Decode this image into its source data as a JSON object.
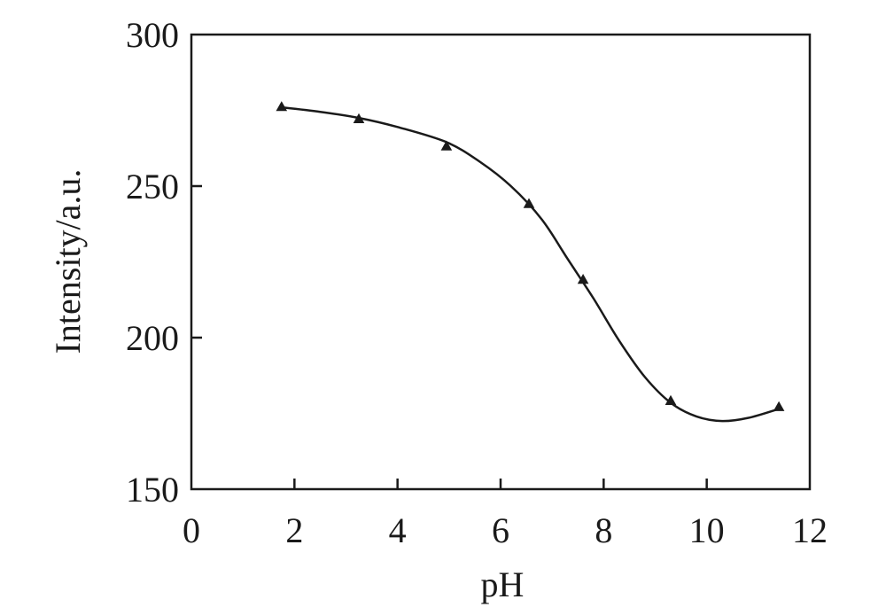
{
  "chart_data": {
    "type": "line",
    "title": "",
    "xlabel": "pH",
    "ylabel": "Intensity/a.u.",
    "xlim": [
      0,
      12
    ],
    "ylim": [
      150,
      300
    ],
    "xticks": [
      "0",
      "2",
      "4",
      "6",
      "8",
      "10",
      "12"
    ],
    "yticks": [
      "150",
      "200",
      "250",
      "300"
    ],
    "grid": false,
    "legend": "none",
    "marker": "triangle",
    "color": "#1a1a1a",
    "series": [
      {
        "points": [
          {
            "x": 1.75,
            "y": 276
          },
          {
            "x": 3.25,
            "y": 272
          },
          {
            "x": 4.95,
            "y": 263
          },
          {
            "x": 6.55,
            "y": 244
          },
          {
            "x": 7.6,
            "y": 219
          },
          {
            "x": 9.3,
            "y": 179
          },
          {
            "x": 11.4,
            "y": 177
          }
        ],
        "curve": [
          {
            "x": 1.75,
            "y": 276
          },
          {
            "x": 2.5,
            "y": 274.5
          },
          {
            "x": 3.25,
            "y": 272.5
          },
          {
            "x": 4.0,
            "y": 269.5
          },
          {
            "x": 4.95,
            "y": 264.5
          },
          {
            "x": 5.6,
            "y": 258
          },
          {
            "x": 6.2,
            "y": 250
          },
          {
            "x": 6.8,
            "y": 239
          },
          {
            "x": 7.3,
            "y": 226
          },
          {
            "x": 7.8,
            "y": 213
          },
          {
            "x": 8.3,
            "y": 199
          },
          {
            "x": 8.8,
            "y": 187
          },
          {
            "x": 9.3,
            "y": 178.5
          },
          {
            "x": 9.8,
            "y": 174
          },
          {
            "x": 10.3,
            "y": 172.5
          },
          {
            "x": 10.8,
            "y": 173.5
          },
          {
            "x": 11.4,
            "y": 176.5
          }
        ]
      }
    ]
  }
}
